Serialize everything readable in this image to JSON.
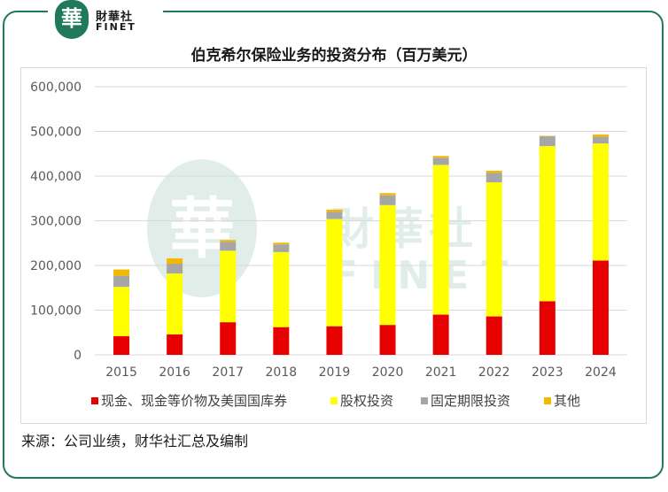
{
  "logo": {
    "mark": "華",
    "name_cn": "財華社",
    "name_en": "FINET"
  },
  "watermark": {
    "mark": "華",
    "name_cn": "財華社",
    "name_en": "FINET"
  },
  "source_text": "来源：公司业绩，财华社汇总及编制",
  "chart_data": {
    "type": "bar",
    "stacked": true,
    "title": "伯克希尔保险业务的投资分布（百万美元）",
    "xlabel": "",
    "ylabel": "",
    "categories": [
      "2015",
      "2016",
      "2017",
      "2018",
      "2019",
      "2020",
      "2021",
      "2022",
      "2023",
      "2024"
    ],
    "ylim": [
      0,
      600000
    ],
    "yticks": [
      0,
      100000,
      200000,
      300000,
      400000,
      500000,
      600000
    ],
    "ytick_labels": [
      "0",
      "100,000",
      "200,000",
      "300,000",
      "400,000",
      "500,000",
      "600,000"
    ],
    "grid": true,
    "legend_position": "bottom",
    "series": [
      {
        "name": "现金、现金等价物及美国国库券",
        "color": "#e60000",
        "values": [
          42000,
          46000,
          73000,
          62000,
          64000,
          67000,
          90000,
          86000,
          120000,
          211000
        ]
      },
      {
        "name": "股权投资",
        "color": "#ffff00",
        "values": [
          110000,
          136000,
          160000,
          168000,
          240000,
          268000,
          335000,
          300000,
          347000,
          262000
        ]
      },
      {
        "name": "固定期限投资",
        "color": "#a6a6a6",
        "values": [
          25000,
          22000,
          20000,
          17000,
          16000,
          22000,
          16000,
          21000,
          22000,
          15000
        ]
      },
      {
        "name": "其他",
        "color": "#f5b800",
        "values": [
          14000,
          12000,
          4000,
          4000,
          5000,
          5000,
          4000,
          5000,
          1000,
          5000
        ]
      }
    ]
  }
}
